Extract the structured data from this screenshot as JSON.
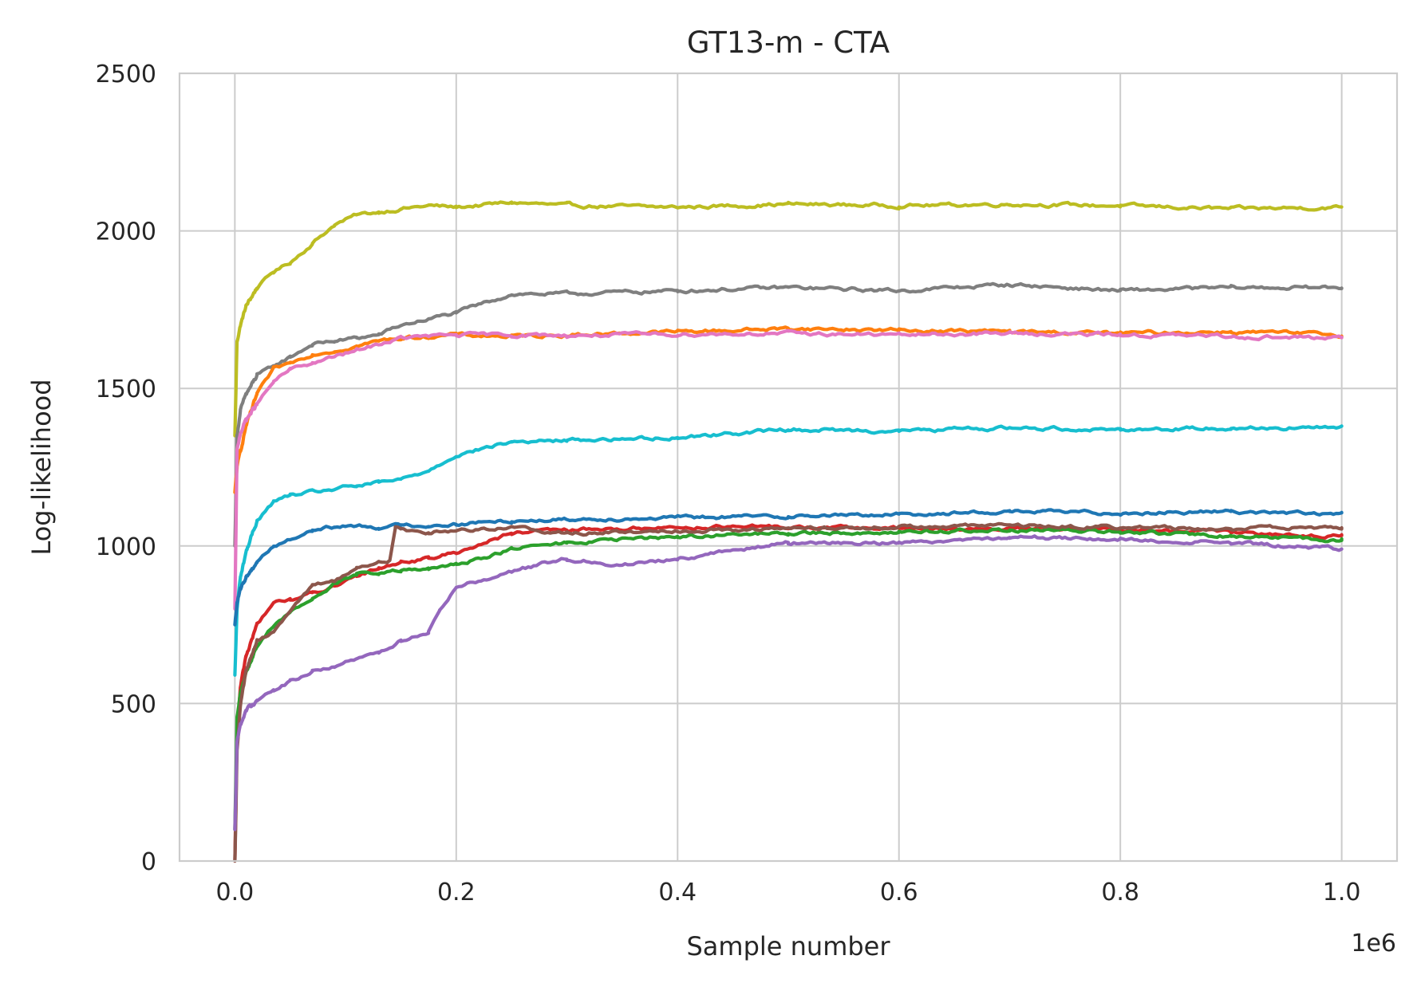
{
  "chart_data": {
    "type": "line",
    "title": "GT13-m - CTA",
    "xlabel": "Sample number",
    "ylabel": "Log-likelihood",
    "x_offset_text": "1e6",
    "xlim": [
      -50000,
      1050000
    ],
    "ylim": [
      0,
      2500
    ],
    "xticks": [
      0,
      200000,
      400000,
      600000,
      800000,
      1000000
    ],
    "xtick_labels": [
      "0.0",
      "0.2",
      "0.4",
      "0.6",
      "0.8",
      "1.0"
    ],
    "yticks": [
      0,
      500,
      1000,
      1500,
      2000,
      2500
    ],
    "ytick_labels": [
      "0",
      "500",
      "1000",
      "1500",
      "2000",
      "2500"
    ],
    "grid": true,
    "legend": "none",
    "series": [
      {
        "color": "#bcbd22",
        "x": [
          0,
          2000,
          5000,
          10000,
          20000,
          35000,
          50000,
          70000,
          90000,
          110000,
          130000,
          150000,
          175000,
          200000,
          250000,
          300000,
          400000,
          500000,
          600000,
          700000,
          800000,
          900000,
          1000000
        ],
        "y": [
          1350,
          1650,
          1700,
          1760,
          1820,
          1870,
          1900,
          1960,
          2020,
          2050,
          2060,
          2070,
          2080,
          2075,
          2090,
          2080,
          2075,
          2085,
          2080,
          2085,
          2080,
          2070,
          2075
        ]
      },
      {
        "color": "#7f7f7f",
        "x": [
          0,
          2000,
          5000,
          10000,
          20000,
          35000,
          50000,
          70000,
          90000,
          110000,
          130000,
          150000,
          175000,
          200000,
          250000,
          300000,
          400000,
          500000,
          600000,
          700000,
          800000,
          900000,
          1000000
        ],
        "y": [
          1000,
          1350,
          1430,
          1480,
          1540,
          1570,
          1600,
          1640,
          1650,
          1660,
          1670,
          1700,
          1720,
          1740,
          1800,
          1800,
          1810,
          1820,
          1810,
          1830,
          1810,
          1820,
          1820
        ]
      },
      {
        "color": "#ff7f0e",
        "x": [
          0,
          2000,
          5000,
          10000,
          20000,
          35000,
          50000,
          70000,
          90000,
          110000,
          130000,
          150000,
          175000,
          200000,
          250000,
          300000,
          400000,
          500000,
          600000,
          700000,
          800000,
          900000,
          1000000
        ],
        "y": [
          1170,
          1250,
          1300,
          1380,
          1480,
          1560,
          1580,
          1610,
          1620,
          1635,
          1650,
          1660,
          1665,
          1670,
          1665,
          1670,
          1680,
          1690,
          1685,
          1680,
          1675,
          1680,
          1670
        ]
      },
      {
        "color": "#e377c2",
        "x": [
          0,
          2000,
          5000,
          10000,
          20000,
          35000,
          50000,
          70000,
          90000,
          110000,
          130000,
          150000,
          175000,
          200000,
          250000,
          300000,
          400000,
          500000,
          600000,
          700000,
          800000,
          900000,
          1000000
        ],
        "y": [
          800,
          1300,
          1360,
          1400,
          1450,
          1520,
          1560,
          1580,
          1600,
          1620,
          1640,
          1660,
          1665,
          1670,
          1670,
          1668,
          1672,
          1675,
          1670,
          1675,
          1670,
          1665,
          1660
        ]
      },
      {
        "color": "#17becf",
        "x": [
          0,
          2000,
          5000,
          10000,
          20000,
          35000,
          50000,
          70000,
          90000,
          110000,
          130000,
          150000,
          175000,
          200000,
          250000,
          300000,
          400000,
          500000,
          600000,
          700000,
          800000,
          900000,
          1000000
        ],
        "y": [
          590,
          800,
          900,
          980,
          1080,
          1140,
          1160,
          1170,
          1180,
          1190,
          1200,
          1210,
          1240,
          1290,
          1330,
          1335,
          1345,
          1370,
          1365,
          1375,
          1370,
          1375,
          1375
        ]
      },
      {
        "color": "#1f77b4",
        "x": [
          0,
          2000,
          5000,
          10000,
          20000,
          35000,
          50000,
          70000,
          90000,
          110000,
          130000,
          150000,
          175000,
          200000,
          250000,
          300000,
          400000,
          500000,
          600000,
          700000,
          800000,
          900000,
          1000000
        ],
        "y": [
          750,
          820,
          860,
          900,
          950,
          1000,
          1020,
          1050,
          1060,
          1065,
          1060,
          1065,
          1065,
          1070,
          1080,
          1085,
          1090,
          1095,
          1100,
          1110,
          1105,
          1110,
          1100
        ]
      },
      {
        "color": "#d62728",
        "x": [
          0,
          2000,
          5000,
          10000,
          20000,
          35000,
          50000,
          70000,
          90000,
          110000,
          130000,
          150000,
          175000,
          200000,
          250000,
          300000,
          400000,
          500000,
          600000,
          700000,
          800000,
          900000,
          1000000
        ],
        "y": [
          0,
          400,
          550,
          650,
          750,
          820,
          830,
          850,
          870,
          900,
          930,
          950,
          960,
          980,
          1040,
          1050,
          1060,
          1060,
          1055,
          1055,
          1050,
          1045,
          1030
        ]
      },
      {
        "color": "#2ca02c",
        "x": [
          0,
          2000,
          5000,
          10000,
          20000,
          35000,
          50000,
          70000,
          90000,
          110000,
          130000,
          150000,
          175000,
          200000,
          250000,
          300000,
          400000,
          500000,
          600000,
          700000,
          800000,
          900000,
          1000000
        ],
        "y": [
          100,
          450,
          530,
          600,
          680,
          750,
          790,
          830,
          880,
          910,
          915,
          920,
          925,
          940,
          990,
          1010,
          1030,
          1040,
          1045,
          1050,
          1045,
          1030,
          1020
        ]
      },
      {
        "color": "#8c564b",
        "x": [
          0,
          2000,
          5000,
          10000,
          20000,
          35000,
          50000,
          70000,
          90000,
          110000,
          130000,
          140000,
          145000,
          150000,
          175000,
          200000,
          250000,
          300000,
          400000,
          500000,
          600000,
          700000,
          800000,
          900000,
          1000000
        ],
        "y": [
          0,
          350,
          500,
          600,
          700,
          730,
          800,
          870,
          890,
          930,
          950,
          955,
          1060,
          1050,
          1045,
          1050,
          1060,
          1040,
          1050,
          1055,
          1060,
          1065,
          1060,
          1055,
          1060
        ]
      },
      {
        "color": "#9467bd",
        "x": [
          0,
          2000,
          5000,
          10000,
          20000,
          35000,
          50000,
          70000,
          90000,
          110000,
          130000,
          150000,
          175000,
          185000,
          200000,
          250000,
          300000,
          350000,
          400000,
          500000,
          600000,
          700000,
          800000,
          900000,
          1000000
        ],
        "y": [
          100,
          380,
          430,
          480,
          510,
          540,
          570,
          600,
          620,
          640,
          660,
          700,
          730,
          800,
          870,
          920,
          960,
          940,
          960,
          1010,
          1010,
          1030,
          1020,
          1010,
          990
        ]
      }
    ]
  }
}
